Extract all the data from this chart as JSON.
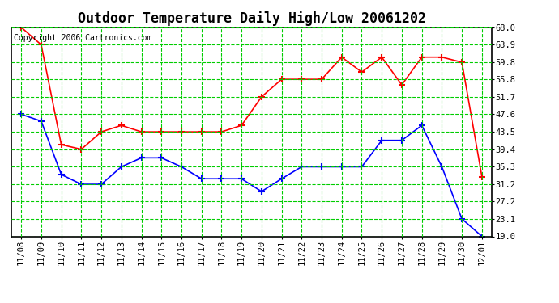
{
  "title": "Outdoor Temperature Daily High/Low 20061202",
  "copyright_text": "Copyright 2006 Cartronics.com",
  "x_labels": [
    "11/08",
    "11/09",
    "11/10",
    "11/11",
    "11/12",
    "11/13",
    "11/14",
    "11/15",
    "11/16",
    "11/17",
    "11/18",
    "11/19",
    "11/20",
    "11/21",
    "11/22",
    "11/23",
    "11/24",
    "11/25",
    "11/26",
    "11/27",
    "11/28",
    "11/29",
    "11/30",
    "12/01"
  ],
  "high_temps": [
    68.0,
    63.9,
    40.5,
    39.4,
    43.5,
    45.0,
    43.5,
    43.5,
    43.5,
    43.5,
    43.5,
    45.0,
    51.7,
    55.8,
    55.8,
    55.8,
    61.0,
    57.5,
    61.0,
    54.5,
    61.0,
    61.0,
    59.8,
    33.0
  ],
  "low_temps": [
    47.6,
    46.0,
    33.5,
    31.2,
    31.2,
    35.3,
    37.4,
    37.4,
    35.3,
    32.5,
    32.5,
    32.5,
    29.5,
    32.5,
    35.3,
    35.3,
    35.3,
    35.3,
    41.5,
    41.5,
    45.0,
    35.3,
    23.1,
    19.0
  ],
  "high_color": "#ff0000",
  "low_color": "#0000ff",
  "marker": "+",
  "marker_size": 6,
  "line_width": 1.2,
  "yticks": [
    19.0,
    23.1,
    27.2,
    31.2,
    35.3,
    39.4,
    43.5,
    47.6,
    51.7,
    55.8,
    59.8,
    63.9,
    68.0
  ],
  "ymin": 19.0,
  "ymax": 68.0,
  "bg_color": "#ffffff",
  "plot_bg_color": "#ffffff",
  "grid_color": "#00cc00",
  "title_fontsize": 12,
  "tick_fontsize": 7.5,
  "copyright_fontsize": 7
}
